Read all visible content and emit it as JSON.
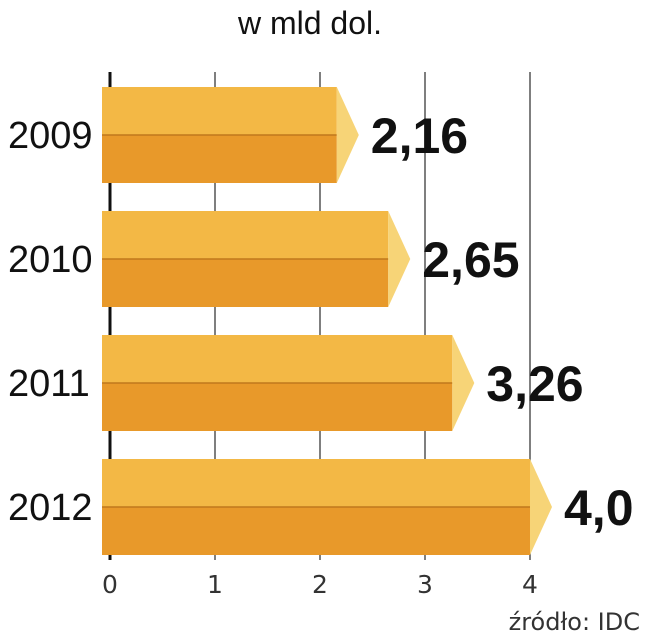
{
  "chart_data": {
    "type": "bar",
    "orientation": "horizontal",
    "title": "w mld dol.",
    "categories": [
      "2009",
      "2010",
      "2011",
      "2012"
    ],
    "values": [
      2.16,
      2.65,
      3.26,
      4.0
    ],
    "value_labels": [
      "2,16",
      "2,65",
      "3,26",
      "4,0"
    ],
    "xlim": [
      0,
      4
    ],
    "xticks": [
      "0",
      "1",
      "2",
      "3",
      "4"
    ],
    "grid": true,
    "colors": {
      "bar_top": "#f3b845",
      "bar_bottom": "#e8992a",
      "bar_cap": "#f7d477",
      "grid": "#555555"
    }
  },
  "source": "źródło: IDC"
}
